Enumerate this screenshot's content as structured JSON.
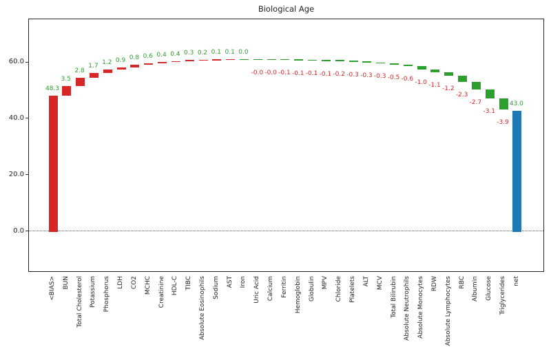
{
  "title": "Biological Age",
  "palette": {
    "positive_bar": "#d62728",
    "negative_bar": "#2ca02c",
    "net_bar": "#1f77b4",
    "positive_label_text": "#2ca02c",
    "negative_label_text": "#d62728",
    "axis_color": "#262626",
    "zero_line_color": "#555555",
    "background": "#ffffff"
  },
  "y_axis": {
    "tick_labels": [
      "0.0",
      "20.0",
      "40.0",
      "60.0"
    ],
    "tick_values": [
      0,
      20,
      40,
      60
    ]
  },
  "chart_data": {
    "type": "bar",
    "subtype": "waterfall",
    "title": "Biological Age",
    "xlabel": "",
    "ylabel": "",
    "ylim": [
      -14.4,
      75.4
    ],
    "grid": false,
    "zero_line": "dotted",
    "legend": "none",
    "categories": [
      "<BIAS>",
      "BUN",
      "Total Cholesterol",
      "Potassium",
      "Phosphorus",
      "LDH",
      "CO2",
      "MCHC",
      "Creatinine",
      "HDL-C",
      "TIBC",
      "Absolute Eosinophils",
      "Sodium",
      "AST",
      "Iron",
      "Uric Acid",
      "Calcium",
      "Ferritin",
      "Hemoglobin",
      "Globulin",
      "MPV",
      "Chloride",
      "Platelets",
      "ALT",
      "MCV",
      "Total Bilirubin",
      "Absolute Neutrophils",
      "Absolute Monocytes",
      "RDW",
      "Absolute Lymphocytes",
      "RBC",
      "Albumin",
      "Glucose",
      "Triglycerides",
      "net"
    ],
    "values": [
      48.3,
      3.5,
      2.8,
      1.7,
      1.2,
      0.9,
      0.8,
      0.6,
      0.4,
      0.4,
      0.3,
      0.2,
      0.1,
      0.1,
      0.0,
      -0.0,
      -0.0,
      -0.1,
      -0.1,
      -0.1,
      -0.1,
      -0.2,
      -0.3,
      -0.3,
      -0.3,
      -0.5,
      -0.6,
      -1.0,
      -1.1,
      -1.2,
      -2.3,
      -2.7,
      -3.1,
      -3.9,
      43.0
    ],
    "value_labels": [
      "48.3",
      "3.5",
      "2.8",
      "1.7",
      "1.2",
      "0.9",
      "0.8",
      "0.6",
      "0.4",
      "0.4",
      "0.3",
      "0.2",
      "0.1",
      "0.1",
      "0.0",
      "-0.0",
      "-0.0",
      "-0.1",
      "-0.1",
      "-0.1",
      "-0.1",
      "-0.2",
      "-0.3",
      "-0.3",
      "-0.3",
      "-0.5",
      "-0.6",
      "-1.0",
      "-1.1",
      "-1.2",
      "-2.3",
      "-2.7",
      "-3.1",
      "-3.9",
      "43.0"
    ],
    "bar_kinds": [
      "total",
      "delta",
      "delta",
      "delta",
      "delta",
      "delta",
      "delta",
      "delta",
      "delta",
      "delta",
      "delta",
      "delta",
      "delta",
      "delta",
      "delta",
      "delta",
      "delta",
      "delta",
      "delta",
      "delta",
      "delta",
      "delta",
      "delta",
      "delta",
      "delta",
      "delta",
      "delta",
      "delta",
      "delta",
      "delta",
      "delta",
      "delta",
      "delta",
      "delta",
      "net"
    ]
  }
}
